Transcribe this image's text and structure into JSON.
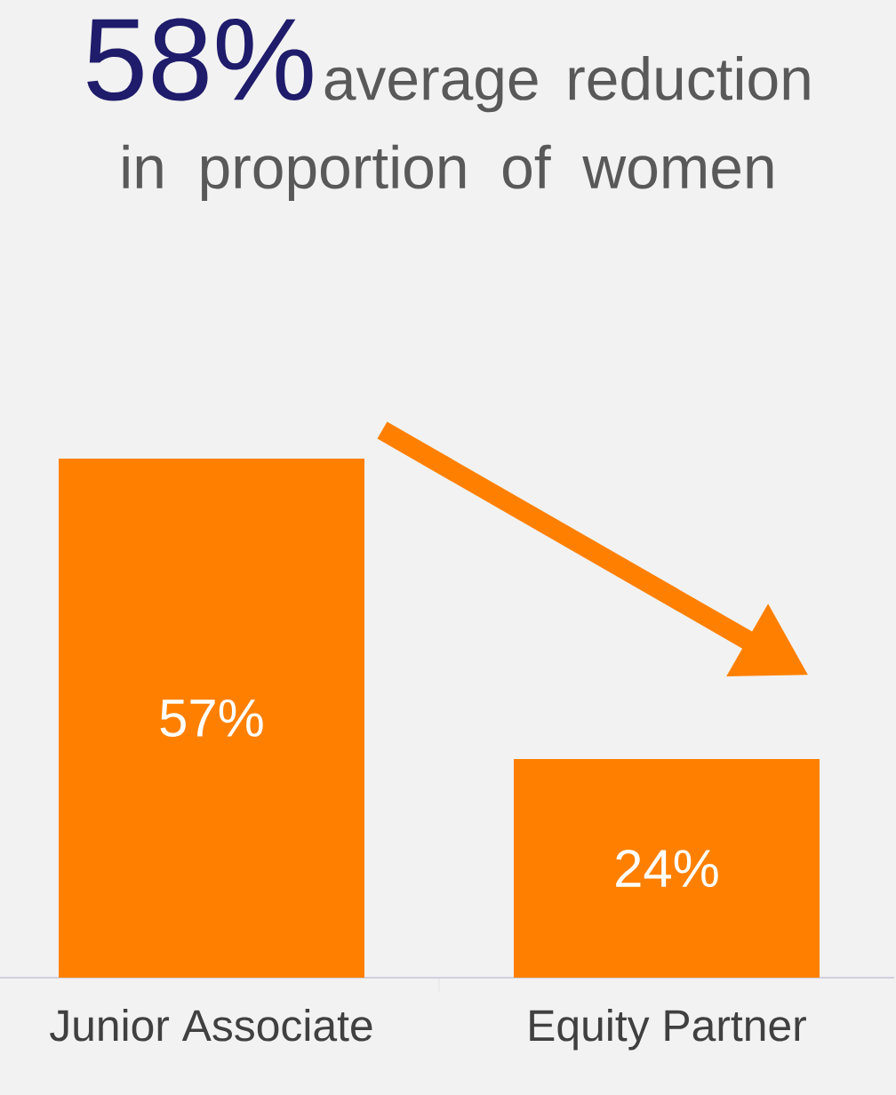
{
  "chart_data": {
    "type": "bar",
    "title": "58%",
    "subtitle": "average reduction in proportion of women",
    "categories": [
      "Junior Associate",
      "Equity Partner"
    ],
    "values": [
      57,
      24
    ],
    "value_labels": [
      "57%",
      "24%"
    ],
    "color": "#ff8000"
  }
}
